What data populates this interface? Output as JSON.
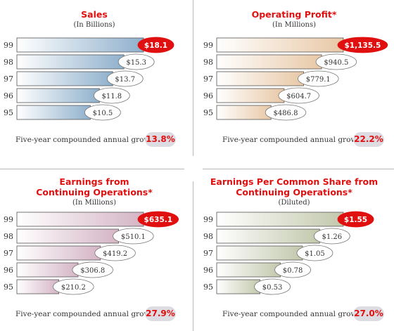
{
  "colors": {
    "title": "#e01010",
    "highlight_oval": "#e01010",
    "growth_pill_bg": "#dcdce2",
    "panel_bar_colors": [
      "#8fb0cc",
      "#e8c8a6",
      "#d4b4c4",
      "#c2c8ac"
    ]
  },
  "chart_data": [
    {
      "type": "bar",
      "orientation": "horizontal",
      "title": "Sales",
      "subtitle": "(In Billions)",
      "categories": [
        "99",
        "98",
        "97",
        "96",
        "95"
      ],
      "values": [
        18.1,
        15.3,
        13.7,
        11.8,
        10.5
      ],
      "value_labels": [
        "$18.1",
        "$15.3",
        "$13.7",
        "$11.8",
        "$10.5"
      ],
      "highlight_index": 0,
      "growth_label": "Five-year compounded annual growth rate",
      "growth_value": "13.8%"
    },
    {
      "type": "bar",
      "orientation": "horizontal",
      "title": "Operating Profit*",
      "subtitle": "(In Millions)",
      "categories": [
        "99",
        "98",
        "97",
        "96",
        "95"
      ],
      "values": [
        1135.5,
        940.5,
        779.1,
        604.7,
        486.8
      ],
      "value_labels": [
        "$1,135.5",
        "$940.5",
        "$779.1",
        "$604.7",
        "$486.8"
      ],
      "highlight_index": 0,
      "growth_label": "Five-year compounded annual growth rate",
      "growth_value": "22.2%"
    },
    {
      "type": "bar",
      "orientation": "horizontal",
      "title": "Earnings from Continuing Operations*",
      "title_lines": [
        "Earnings from",
        "Continuing Operations*"
      ],
      "subtitle": "(In Millions)",
      "categories": [
        "99",
        "98",
        "97",
        "96",
        "95"
      ],
      "values": [
        635.1,
        510.1,
        419.2,
        306.8,
        210.2
      ],
      "value_labels": [
        "$635.1",
        "$510.1",
        "$419.2",
        "$306.8",
        "$210.2"
      ],
      "highlight_index": 0,
      "growth_label": "Five-year compounded annual growth rate",
      "growth_value": "27.9%"
    },
    {
      "type": "bar",
      "orientation": "horizontal",
      "title": "Earnings Per Common Share from Continuing Operations*",
      "title_lines": [
        "Earnings Per Common Share from",
        "Continuing Operations*"
      ],
      "subtitle": "(Diluted)",
      "categories": [
        "99",
        "98",
        "97",
        "96",
        "95"
      ],
      "values": [
        1.55,
        1.26,
        1.05,
        0.78,
        0.53
      ],
      "value_labels": [
        "$1.55",
        "$1.26",
        "$1.05",
        "$0.78",
        "$0.53"
      ],
      "highlight_index": 0,
      "growth_label": "Five-year compounded annual growth rate",
      "growth_value": "27.0%"
    }
  ]
}
